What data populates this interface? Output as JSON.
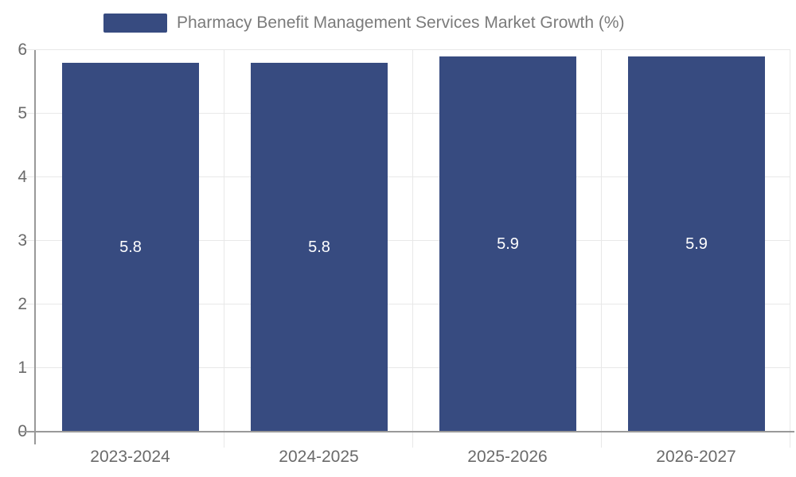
{
  "chart_data": {
    "type": "bar",
    "title": "Pharmacy Benefit Management Services Market Growth (%)",
    "categories": [
      "2023-2024",
      "2024-2025",
      "2025-2026",
      "2026-2027"
    ],
    "values": [
      5.8,
      5.8,
      5.9,
      5.9
    ],
    "bar_labels": [
      "5.8",
      "5.8",
      "5.9",
      "5.9"
    ],
    "xlabel": "",
    "ylabel": "",
    "ylim": [
      0,
      6
    ],
    "yticks": [
      0,
      1,
      2,
      3,
      4,
      5,
      6
    ],
    "grid": true,
    "legend_position": "top-center",
    "colors": {
      "bar": "#374B80",
      "bar_label": "#FFFFFF",
      "axis_line": "#999999",
      "gridline": "#E8E8E8",
      "tick_label": "#6A6A6A",
      "legend_text": "#7B7B7B",
      "background": "#FFFFFF"
    }
  }
}
